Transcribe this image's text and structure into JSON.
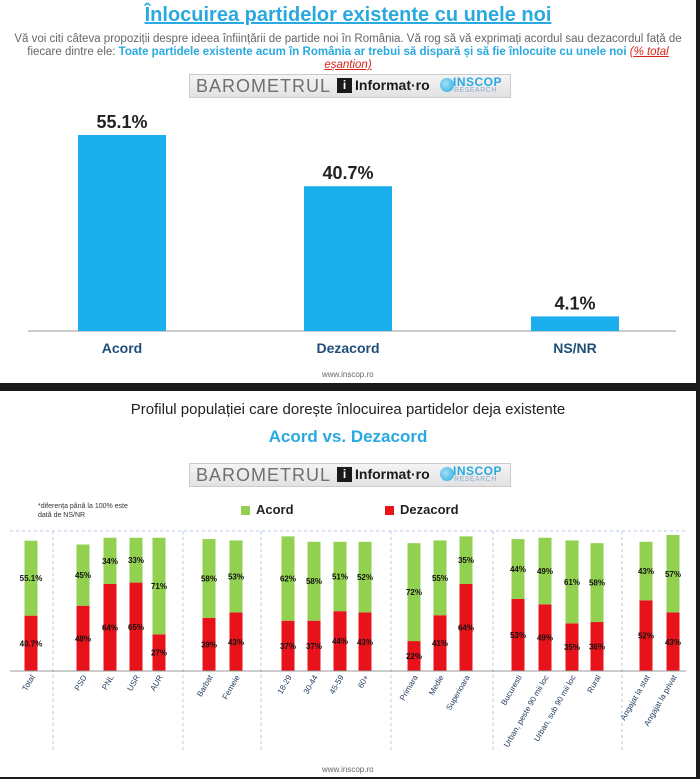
{
  "top": {
    "title": "Înlocuirea partidelor existente cu unele noi",
    "question_intro": "Vă voi citi câteva propoziții despre ideea înființării de partide noi în România. Vă rog să vă exprimați acordul sau dezacordul față de fiecare dintre ele:",
    "question_statement": "Toate partidele existente acum în România ar trebui să dispară și să fie înlocuite cu unele noi",
    "question_note": "(% total eșantion)",
    "footer": "www.inscop.ro"
  },
  "banner": {
    "barometru": "BAROMETRUL",
    "informat": "Informat·ro",
    "i_mark": "i",
    "inscop": "INSCOP",
    "research": "RESEARCH"
  },
  "bottom": {
    "title": "Profilul populației care dorește înlocuirea partidelor deja existente",
    "subtitle": "Acord vs. Dezacord",
    "note": "*diferența până la 100% este dată de NS/NR",
    "footer": "www.inscop.ro"
  },
  "colors": {
    "blue": "#1aaeec",
    "green": "#92d050",
    "red": "#e8121a"
  },
  "chart_data": [
    {
      "type": "bar",
      "categories": [
        "Acord",
        "Dezacord",
        "NS/NR"
      ],
      "values": [
        55.1,
        40.7,
        4.1
      ],
      "value_labels": [
        "55.1%",
        "40.7%",
        "4.1%"
      ],
      "ylim": [
        0,
        60
      ]
    },
    {
      "type": "bar",
      "stacked": true,
      "categories": [
        "Total",
        "PSD",
        "PNL",
        "USR",
        "AUR",
        "Barbat",
        "Femeie",
        "18-29",
        "30-44",
        "45-59",
        "60+",
        "Primara",
        "Medie",
        "Superioara",
        "Bucuresti",
        "Urban, peste 90 mii loc",
        "Urban, sub 90 mii loc",
        "Rural",
        "Angajat la stat",
        "Angajat la privat"
      ],
      "groups": [
        1,
        4,
        2,
        4,
        3,
        3,
        2
      ],
      "series": [
        {
          "name": "Dezacord",
          "values": [
            40.7,
            48,
            64,
            65,
            27,
            39,
            43,
            37,
            37,
            44,
            43,
            22,
            41,
            64,
            53,
            49,
            35,
            36,
            52,
            43
          ],
          "labels": [
            "40.7%",
            "48%",
            "64%",
            "65%",
            "27%",
            "39%",
            "43%",
            "37%",
            "37%",
            "44%",
            "43%",
            "22%",
            "41%",
            "64%",
            "53%",
            "49%",
            "35%",
            "36%",
            "52%",
            "43%"
          ]
        },
        {
          "name": "Acord",
          "values": [
            55.1,
            45,
            34,
            33,
            71,
            58,
            53,
            62,
            58,
            51,
            52,
            72,
            55,
            35,
            44,
            49,
            61,
            58,
            43,
            57
          ],
          "labels": [
            "55.1%",
            "45%",
            "34%",
            "33%",
            "71%",
            "58%",
            "53%",
            "62%",
            "58%",
            "51%",
            "52%",
            "72%",
            "55%",
            "35%",
            "44%",
            "49%",
            "61%",
            "58%",
            "43%",
            "57%"
          ]
        }
      ],
      "ylim": [
        0,
        100
      ],
      "legend": "top-center"
    }
  ]
}
